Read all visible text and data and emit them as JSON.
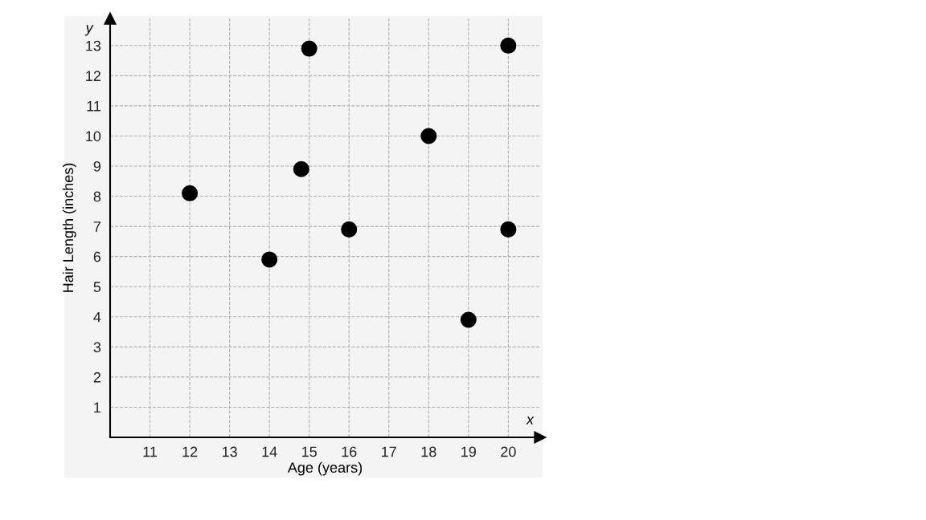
{
  "chart_data": {
    "type": "scatter",
    "xlabel": "Age (years)",
    "ylabel": "Hair Length (inches)",
    "x": [
      12,
      14,
      14.8,
      15,
      16,
      18,
      19,
      20,
      20
    ],
    "values": [
      8.1,
      5.9,
      8.9,
      12.9,
      6.9,
      10,
      3.9,
      13,
      6.9
    ],
    "color": "#000000",
    "marker": "circle",
    "xlim": [
      10,
      20.8
    ],
    "ylim": [
      0,
      13.9
    ],
    "xticks": [
      11,
      12,
      13,
      14,
      15,
      16,
      17,
      18,
      19,
      20
    ],
    "yticks": [
      1,
      2,
      3,
      4,
      5,
      6,
      7,
      8,
      9,
      10,
      11,
      12,
      13
    ],
    "grid": true,
    "annotations": [
      "y",
      "x"
    ]
  }
}
